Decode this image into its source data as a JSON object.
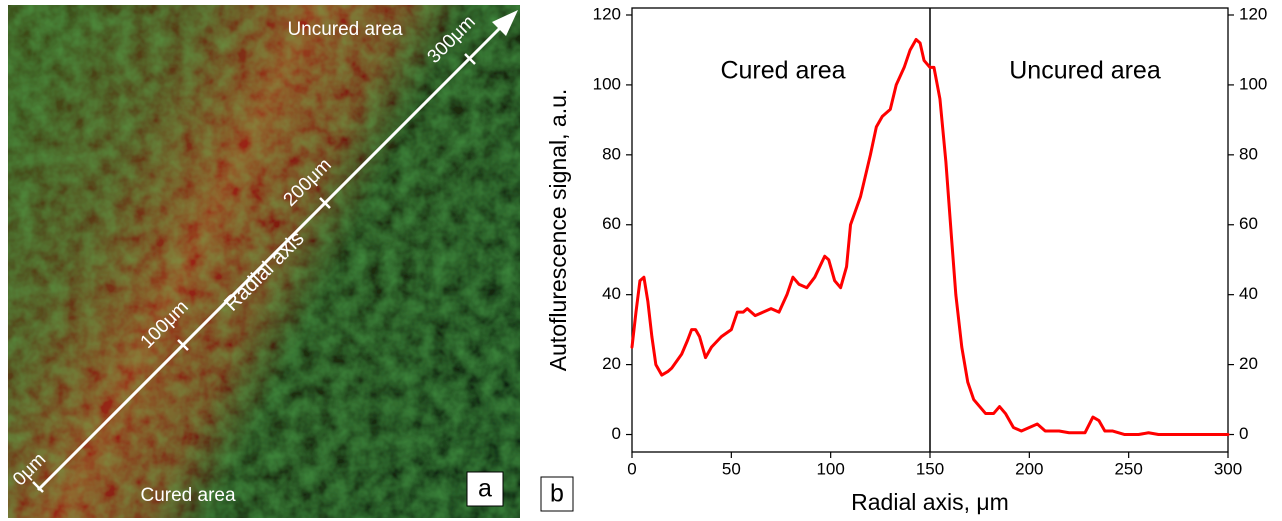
{
  "image_panel": {
    "top_label": "Uncured area",
    "bottom_label": "Cured area",
    "axis_label": "Radial axis",
    "tick_labels": [
      "0μm",
      "100μm",
      "200μm",
      "300μm"
    ],
    "panel_label": "a"
  },
  "chart_data": {
    "type": "line",
    "xlabel": "Radial axis, μm",
    "ylabel": "Autoflurescence signal, a.u.",
    "annotations": [
      "Cured area",
      "Uncured area"
    ],
    "panel_label": "b",
    "color": "#ff0000",
    "vline": 150,
    "x": [
      0,
      2,
      4,
      6,
      8,
      10,
      12,
      15,
      18,
      20,
      25,
      28,
      30,
      32,
      34,
      37,
      40,
      45,
      50,
      53,
      56,
      58,
      62,
      66,
      70,
      74,
      78,
      81,
      84,
      88,
      92,
      97,
      99,
      102,
      105,
      108,
      110,
      115,
      120,
      123,
      126,
      130,
      133,
      137,
      140,
      143,
      145,
      147,
      150,
      152,
      155,
      158,
      161,
      163,
      166,
      169,
      172,
      175,
      178,
      182,
      185,
      188,
      192,
      196,
      200,
      204,
      208,
      215,
      220,
      228,
      232,
      235,
      238,
      242,
      248,
      255,
      260,
      265,
      280,
      300
    ],
    "values": [
      25,
      35,
      44,
      45,
      38,
      28,
      20,
      17,
      18,
      19,
      23,
      27,
      30,
      30,
      28,
      22,
      25,
      28,
      30,
      35,
      35,
      36,
      34,
      35,
      36,
      35,
      40,
      45,
      43,
      42,
      45,
      51,
      50,
      44,
      42,
      48,
      60,
      68,
      80,
      88,
      91,
      93,
      100,
      105,
      110,
      113,
      112,
      107,
      105,
      105,
      96,
      78,
      55,
      40,
      25,
      15,
      10,
      8,
      6,
      6,
      8,
      6,
      2,
      1,
      2,
      3,
      1,
      1,
      0.5,
      0.5,
      5,
      4,
      1,
      1,
      0,
      0,
      0.5,
      0,
      0,
      0
    ],
    "xlim": [
      0,
      300
    ],
    "xticks": [
      0,
      50,
      100,
      150,
      200,
      250,
      300
    ],
    "ylim": [
      -5,
      122
    ],
    "yticks": [
      0,
      20,
      40,
      60,
      80,
      100,
      120
    ],
    "y2lim": [
      -5,
      122
    ],
    "y2ticks": [
      0,
      20,
      40,
      60,
      80,
      100,
      120
    ]
  }
}
